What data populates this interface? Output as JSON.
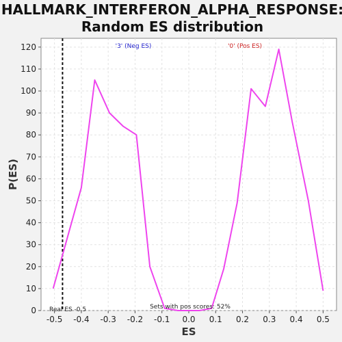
{
  "chart_data": {
    "type": "line",
    "title_line1": "HALLMARK_INTERFERON_ALPHA_RESPONSE:",
    "title_line2": "Random ES distribution",
    "xlabel": "ES",
    "ylabel": "P(ES)",
    "xlim": [
      -0.55,
      0.55
    ],
    "ylim": [
      0,
      124
    ],
    "xticks": [
      -0.5,
      -0.4,
      -0.3,
      -0.2,
      -0.1,
      0.0,
      0.1,
      0.2,
      0.3,
      0.4,
      0.5
    ],
    "yticks": [
      0,
      10,
      20,
      30,
      40,
      50,
      60,
      70,
      80,
      90,
      100,
      110,
      120
    ],
    "grid": true,
    "series": [
      {
        "color": "#ee44ee",
        "x": [
          -0.505,
          -0.4,
          -0.35,
          -0.295,
          -0.245,
          -0.195,
          -0.145,
          -0.09,
          -0.04,
          0.0,
          0.04,
          0.085,
          0.13,
          0.18,
          0.232,
          0.285,
          0.335,
          0.385,
          0.445,
          0.5
        ],
        "y": [
          10,
          56,
          105,
          90,
          84,
          80,
          20,
          1,
          0,
          0,
          0,
          1,
          19,
          49,
          101,
          93,
          119,
          86,
          50,
          9
        ]
      }
    ],
    "real_es": {
      "value": -0.47,
      "label": "Real ES -0.5",
      "color": "#111111"
    },
    "annotations": {
      "neg_label": "'3' (Neg ES)",
      "neg_color": "#2222cc",
      "pos_label": "'0' (Pos ES)",
      "pos_color": "#cc2222",
      "pos_scores": "Sets with pos scores: 52%"
    }
  }
}
